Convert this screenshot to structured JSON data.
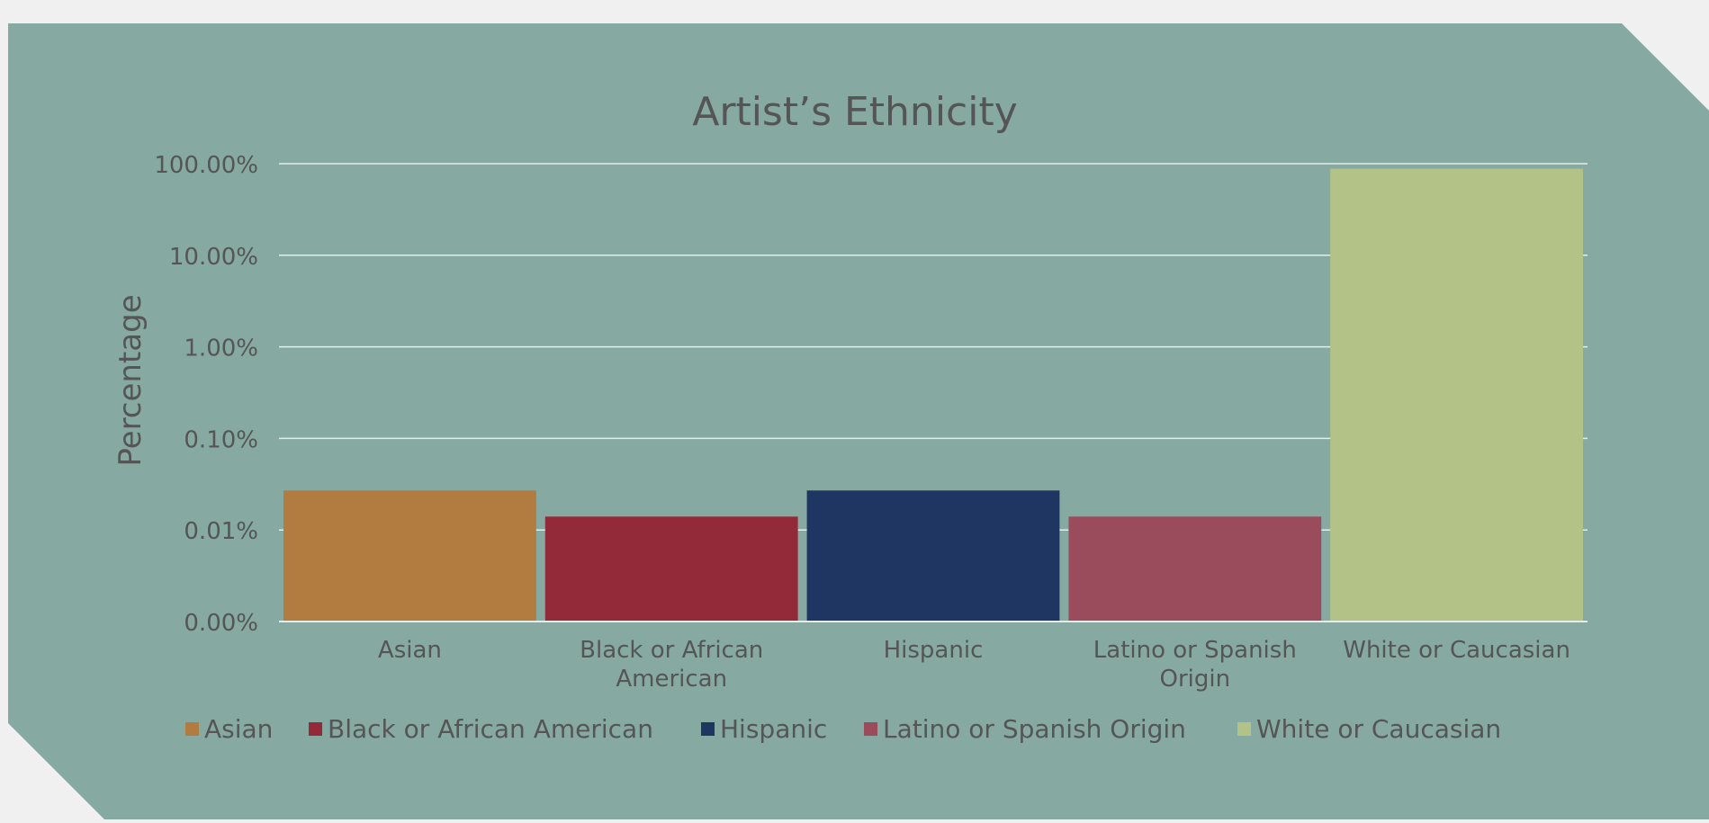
{
  "chart_data": {
    "type": "bar",
    "title": "Artist’s Ethnicity",
    "ylabel": "Percentage",
    "xlabel": "",
    "yscale": "log",
    "ylim": [
      0.001,
      100
    ],
    "yticks": [
      {
        "value": 0.001,
        "label": "0.00%"
      },
      {
        "value": 0.01,
        "label": "0.01%"
      },
      {
        "value": 0.1,
        "label": "0.10%"
      },
      {
        "value": 1,
        "label": "1.00%"
      },
      {
        "value": 10,
        "label": "10.00%"
      },
      {
        "value": 100,
        "label": "100.00%"
      }
    ],
    "categories": [
      [
        "Asian"
      ],
      [
        "Black or African",
        "American"
      ],
      [
        "Hispanic"
      ],
      [
        "Latino or Spanish",
        "Origin"
      ],
      [
        "White or Caucasian"
      ]
    ],
    "values": [
      0.027,
      0.014,
      0.027,
      0.014,
      88
    ],
    "colors": [
      "#b27c40",
      "#922a39",
      "#1f3662",
      "#9a4b5c",
      "#b3c387"
    ],
    "legend": {
      "position": "bottom",
      "entries": [
        "Asian",
        "Black or African American",
        "Hispanic",
        "Latino or Spanish Origin",
        "White or Caucasian"
      ]
    },
    "grid": true,
    "background": "#86aaa2",
    "text_color": "#555555",
    "grid_color": "#e6ecea"
  }
}
